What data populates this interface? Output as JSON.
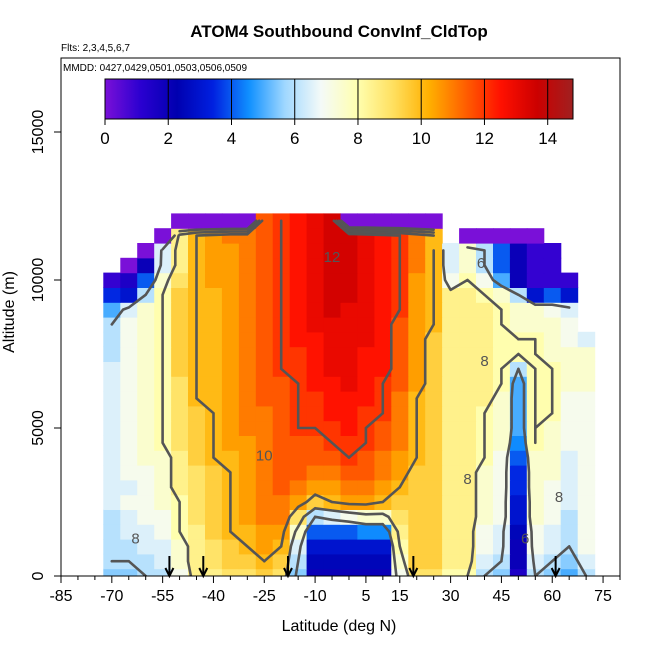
{
  "chart_data": {
    "type": "heatmap",
    "title": "ATOM4 Southbound ConvInf_CldTop",
    "annotations": [
      "Flts: 2,3,4,5,6,7",
      "MMDD: 0427,0429,0501,0503,0506,0509"
    ],
    "xlabel": "Latitude (deg N)",
    "ylabel": "Altitude (m)",
    "xlim": [
      -85,
      80
    ],
    "ylim": [
      0,
      17500
    ],
    "x_ticks": [
      -85,
      -70,
      -55,
      -40,
      -25,
      -10,
      5,
      15,
      30,
      45,
      60,
      75
    ],
    "y_ticks": [
      0,
      5000,
      10000,
      15000
    ],
    "grid": false,
    "colorbar": {
      "position": "top",
      "range": [
        0,
        14.8
      ],
      "ticks": [
        0,
        2,
        4,
        6,
        8,
        10,
        12,
        14
      ],
      "colors": [
        "#7a10d8",
        "#2a00d0",
        "#0000b0",
        "#0020e0",
        "#1090ff",
        "#a0d8ff",
        "#f4faf8",
        "#ffffb0",
        "#ffe060",
        "#ffb000",
        "#ff6000",
        "#ff1000",
        "#cc0000",
        "#a02020"
      ]
    },
    "contour_levels": [
      6,
      8,
      10,
      12
    ],
    "contour_labels": [
      "12",
      "10",
      "8",
      "8",
      "8",
      "6",
      "6",
      "8"
    ],
    "markers_latitude": [
      -53,
      -43,
      -18,
      19,
      61
    ],
    "grid_latitudes": [
      -70,
      -65,
      -60,
      -55,
      -50,
      -45,
      -40,
      -35,
      -30,
      -25,
      -20,
      -15,
      -10,
      -5,
      0,
      5,
      10,
      15,
      20,
      25,
      30,
      35,
      40,
      45,
      50,
      55,
      60,
      65,
      70
    ],
    "grid_altitudes": [
      0,
      500,
      1000,
      1500,
      2000,
      2500,
      3000,
      3500,
      4000,
      4500,
      5000,
      5500,
      6000,
      6500,
      7000,
      7500,
      8000,
      8500,
      9000,
      9500,
      10000,
      10500,
      11000,
      11500,
      12000
    ],
    "top_altitude_by_latitude": [
      10000,
      10500,
      11000,
      11500,
      12000,
      12000,
      12000,
      12000,
      12000,
      12000,
      12500,
      12500,
      12500,
      12000,
      12000,
      12000,
      12000,
      12000,
      12000,
      12000,
      11000,
      11500,
      11500,
      11500,
      11500,
      11500,
      11000,
      10000,
      8000
    ],
    "values_by_altitude": [
      [
        5.5,
        5.5,
        6.0,
        6.0,
        7.0,
        8.5,
        8.5,
        9.0,
        9.0,
        9.5,
        9.0,
        5.5,
        2.0,
        2.0,
        2.0,
        2.0,
        2.0,
        7.0,
        9.0,
        9.0,
        8.0,
        8.0,
        6.0,
        5.5,
        1.5,
        6.0,
        5.5,
        5.0,
        6.0
      ],
      [
        6.0,
        6.0,
        6.0,
        6.5,
        7.5,
        8.5,
        9.0,
        9.5,
        9.5,
        10.0,
        9.5,
        6.0,
        2.5,
        2.5,
        2.5,
        2.5,
        2.5,
        7.5,
        9.5,
        9.5,
        8.5,
        8.5,
        6.5,
        6.0,
        2.0,
        6.5,
        6.0,
        5.5,
        6.5
      ],
      [
        6.0,
        6.0,
        6.5,
        6.5,
        7.5,
        8.5,
        9.0,
        9.5,
        10.0,
        10.5,
        10.0,
        6.5,
        3.0,
        3.0,
        3.0,
        3.0,
        3.0,
        8.0,
        9.5,
        9.5,
        8.5,
        8.5,
        7.0,
        6.5,
        2.0,
        7.0,
        6.5,
        6.0,
        7.0
      ],
      [
        6.0,
        6.5,
        6.5,
        7.0,
        8.0,
        8.5,
        9.5,
        10.0,
        10.0,
        10.5,
        10.5,
        7.5,
        4.0,
        4.0,
        4.0,
        4.5,
        4.5,
        8.5,
        9.5,
        9.5,
        8.5,
        8.5,
        7.0,
        6.5,
        2.5,
        7.0,
        6.5,
        6.0,
        7.0
      ],
      [
        6.0,
        6.5,
        7.0,
        7.0,
        8.0,
        9.0,
        9.5,
        10.0,
        10.5,
        11.0,
        11.0,
        9.0,
        6.0,
        6.5,
        7.0,
        7.5,
        7.5,
        9.0,
        9.5,
        9.5,
        8.5,
        8.5,
        7.5,
        7.0,
        3.0,
        7.5,
        7.0,
        6.0,
        7.0
      ],
      [
        6.5,
        7.0,
        7.0,
        7.5,
        8.0,
        9.0,
        9.5,
        10.0,
        10.5,
        11.0,
        11.0,
        10.5,
        9.5,
        10.0,
        10.5,
        10.5,
        10.0,
        9.5,
        9.5,
        9.5,
        8.5,
        8.5,
        7.5,
        7.0,
        3.0,
        7.5,
        7.0,
        6.5,
        7.0
      ],
      [
        6.5,
        6.5,
        7.0,
        7.5,
        8.5,
        9.0,
        9.5,
        10.0,
        10.5,
        11.0,
        11.5,
        11.0,
        10.5,
        10.5,
        11.0,
        11.0,
        10.5,
        10.0,
        9.5,
        9.5,
        8.5,
        8.5,
        7.5,
        7.0,
        3.5,
        7.5,
        7.0,
        6.5,
        7.0
      ],
      [
        6.5,
        7.0,
        7.0,
        7.5,
        8.5,
        9.0,
        9.5,
        10.0,
        10.5,
        11.0,
        11.5,
        11.5,
        11.0,
        11.0,
        11.5,
        11.5,
        11.0,
        10.5,
        9.5,
        9.5,
        8.5,
        8.5,
        7.5,
        7.0,
        3.5,
        7.5,
        7.5,
        6.5,
        7.0
      ],
      [
        6.5,
        7.0,
        7.5,
        7.5,
        8.5,
        9.5,
        10.0,
        10.0,
        10.5,
        11.0,
        11.5,
        11.5,
        11.5,
        11.5,
        12.0,
        11.5,
        11.0,
        10.5,
        10.0,
        9.5,
        8.5,
        8.5,
        8.0,
        7.0,
        4.0,
        7.5,
        7.5,
        6.5,
        7.0
      ],
      [
        6.5,
        7.0,
        7.5,
        8.0,
        9.0,
        9.5,
        10.0,
        10.5,
        10.5,
        11.0,
        11.5,
        11.5,
        11.5,
        12.0,
        12.0,
        12.0,
        11.5,
        11.0,
        10.0,
        9.5,
        8.5,
        8.5,
        8.0,
        7.5,
        4.5,
        8.0,
        7.5,
        7.0,
        7.0
      ],
      [
        6.5,
        7.0,
        7.5,
        8.0,
        9.0,
        9.5,
        10.0,
        10.5,
        11.0,
        11.0,
        11.5,
        12.0,
        12.0,
        12.0,
        12.5,
        12.0,
        11.5,
        11.0,
        10.0,
        9.5,
        8.5,
        8.5,
        8.0,
        7.5,
        5.0,
        8.0,
        7.5,
        7.0,
        7.0
      ],
      [
        6.5,
        7.0,
        7.5,
        8.0,
        9.0,
        9.5,
        10.0,
        10.5,
        11.0,
        11.0,
        11.5,
        12.0,
        12.0,
        12.5,
        12.5,
        12.0,
        12.0,
        11.0,
        10.0,
        9.5,
        8.5,
        8.5,
        8.0,
        7.5,
        5.0,
        8.0,
        8.0,
        7.0,
        7.0
      ],
      [
        6.5,
        7.0,
        7.5,
        8.0,
        9.0,
        10.0,
        10.0,
        10.5,
        11.0,
        11.5,
        11.5,
        12.0,
        12.0,
        12.5,
        12.5,
        12.5,
        12.0,
        11.0,
        10.0,
        9.5,
        8.5,
        8.5,
        8.5,
        7.5,
        5.0,
        8.0,
        8.0,
        7.0,
        7.0
      ],
      [
        6.5,
        7.0,
        7.5,
        8.0,
        9.0,
        10.0,
        10.0,
        10.5,
        11.0,
        11.5,
        11.5,
        12.0,
        12.5,
        12.5,
        13.0,
        12.5,
        12.0,
        11.5,
        10.5,
        9.5,
        8.5,
        8.5,
        8.5,
        8.0,
        5.0,
        8.0,
        8.0,
        7.5,
        7.5
      ],
      [
        6.5,
        7.0,
        7.5,
        8.0,
        9.5,
        10.0,
        10.0,
        10.5,
        11.0,
        11.5,
        12.0,
        12.0,
        12.5,
        13.0,
        13.0,
        12.5,
        12.5,
        11.5,
        10.5,
        9.5,
        8.5,
        8.5,
        8.5,
        8.0,
        6.0,
        8.0,
        8.0,
        7.5,
        7.5
      ],
      [
        6.0,
        7.0,
        7.5,
        8.0,
        9.5,
        10.0,
        10.0,
        10.5,
        11.0,
        11.5,
        12.0,
        12.0,
        12.5,
        13.0,
        13.0,
        12.5,
        12.5,
        11.5,
        10.5,
        9.5,
        8.5,
        8.5,
        8.5,
        8.0,
        8.0,
        8.0,
        7.5,
        7.5,
        7.5
      ],
      [
        6.0,
        7.0,
        7.5,
        8.0,
        9.5,
        10.0,
        10.0,
        10.5,
        11.0,
        11.5,
        12.0,
        12.5,
        12.5,
        13.0,
        13.0,
        13.0,
        12.5,
        11.5,
        10.5,
        9.5,
        8.5,
        8.5,
        8.5,
        8.0,
        8.0,
        8.0,
        7.5,
        7.0,
        6.5
      ],
      [
        6.0,
        7.0,
        7.5,
        8.0,
        9.5,
        10.0,
        10.0,
        10.5,
        11.0,
        11.5,
        12.0,
        12.5,
        13.0,
        13.0,
        13.0,
        13.0,
        12.5,
        11.5,
        10.5,
        10.0,
        8.5,
        8.5,
        8.5,
        8.0,
        7.5,
        7.5,
        7.5,
        7.0,
        6.5
      ],
      [
        5.0,
        6.5,
        7.5,
        8.0,
        9.5,
        10.0,
        10.0,
        10.5,
        11.0,
        11.5,
        12.0,
        12.5,
        13.0,
        13.5,
        13.0,
        13.0,
        12.5,
        12.0,
        10.5,
        10.0,
        8.5,
        8.5,
        8.5,
        8.0,
        7.5,
        7.5,
        7.0,
        6.5,
        6.0
      ],
      [
        3.5,
        3.0,
        6.0,
        8.0,
        9.5,
        10.0,
        10.0,
        10.5,
        11.0,
        11.5,
        12.0,
        12.5,
        13.0,
        13.5,
        13.5,
        13.0,
        12.5,
        12.0,
        10.5,
        10.0,
        8.5,
        8.5,
        8.0,
        7.5,
        6.0,
        3.0,
        4.0,
        3.0,
        4.5
      ],
      [
        1.0,
        1.5,
        4.0,
        7.5,
        9.0,
        10.0,
        10.5,
        10.5,
        11.0,
        11.5,
        12.0,
        12.5,
        13.0,
        13.5,
        13.5,
        13.0,
        12.5,
        12.0,
        10.5,
        10.0,
        7.0,
        8.0,
        7.0,
        5.0,
        2.0,
        1.0,
        1.0,
        1.0,
        1.0
      ],
      [
        0,
        0,
        2.0,
        6.5,
        8.5,
        10.0,
        10.5,
        10.5,
        11.0,
        11.5,
        12.0,
        12.5,
        13.0,
        13.5,
        13.5,
        13.0,
        12.5,
        12.0,
        11.0,
        10.0,
        6.5,
        7.5,
        6.0,
        4.0,
        2.0,
        1.0,
        1.0,
        1.0,
        1.0
      ],
      [
        0,
        0,
        0,
        6.5,
        8.5,
        10.0,
        10.5,
        10.5,
        11.0,
        11.5,
        12.0,
        12.5,
        13.0,
        13.5,
        13.5,
        13.0,
        12.5,
        12.0,
        11.0,
        10.0,
        6.5,
        7.5,
        6.0,
        4.0,
        2.0,
        1.0,
        1.0,
        1.0,
        0
      ],
      [
        0,
        0,
        0,
        0,
        8.5,
        10.0,
        10.5,
        11.0,
        11.0,
        11.5,
        12.0,
        12.5,
        13.0,
        13.5,
        13.5,
        13.0,
        12.5,
        12.0,
        11.0,
        10.0,
        6.5,
        0,
        0,
        0,
        0,
        0,
        0,
        0,
        0
      ],
      [
        0,
        0,
        0,
        0,
        0,
        0,
        0,
        0,
        0,
        11.5,
        12.0,
        12.5,
        13.0,
        13.5,
        0,
        0,
        0,
        0,
        0,
        0,
        0,
        0,
        0,
        0,
        0,
        0,
        0,
        0,
        0
      ]
    ]
  }
}
